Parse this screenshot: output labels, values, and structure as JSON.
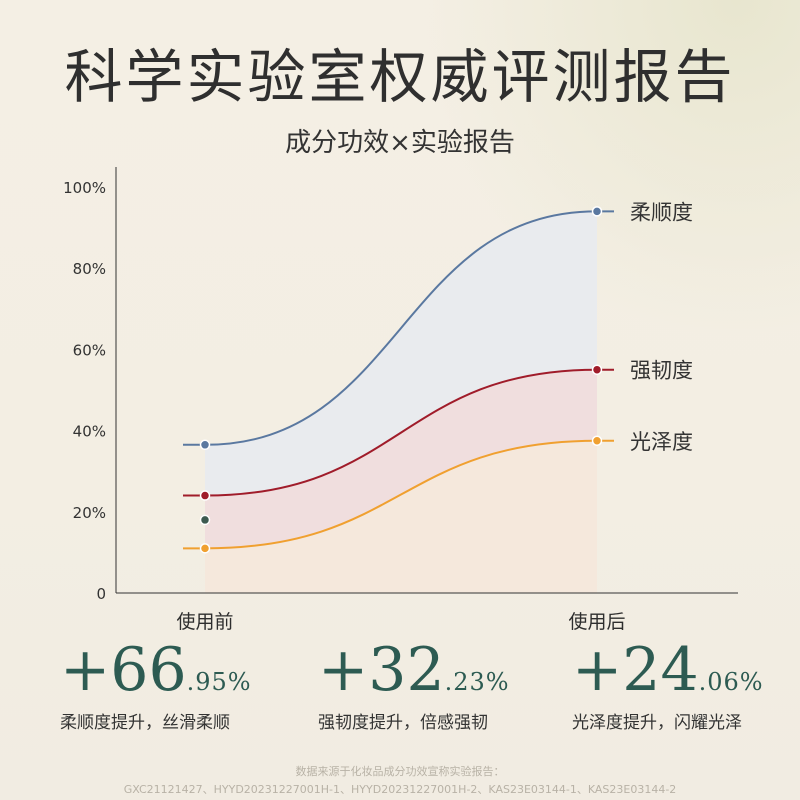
{
  "header": {
    "title": "科学实验室权威评测报告",
    "subtitle": "成分功效×实验报告"
  },
  "chart_data": {
    "type": "area",
    "categories": [
      "使用前",
      "使用后"
    ],
    "ylim": [
      0,
      100
    ],
    "yticks": [
      "0",
      "20%",
      "40%",
      "60%",
      "80%",
      "100%"
    ],
    "grid": false,
    "series": [
      {
        "name": "柔顺度",
        "values": [
          36.5,
          94
        ],
        "color": "#5a78a0",
        "fill": "#e9ebee"
      },
      {
        "name": "强韧度",
        "values": [
          24,
          55
        ],
        "color": "#a01c2a",
        "fill": "#f0dede"
      },
      {
        "name": "光泽度",
        "values": [
          11,
          37.5
        ],
        "color": "#f0a030",
        "fill": "#f5e8dc"
      }
    ],
    "extra_marker": {
      "category": "使用前",
      "value": 18,
      "color": "#3c5a50"
    }
  },
  "stats": [
    {
      "sign_value": "+66",
      "decimal": ".95%",
      "desc": "柔顺度提升，丝滑柔顺"
    },
    {
      "sign_value": "+32",
      "decimal": ".23%",
      "desc": "强韧度提升，倍感强韧"
    },
    {
      "sign_value": "+24",
      "decimal": ".06%",
      "desc": "光泽度提升，闪耀光泽"
    }
  ],
  "footer": {
    "line1": "数据来源于化妆品成分功效宣称实验报告：",
    "line2": "GXC21121427、HYYD20231227001H-1、HYYD20231227001H-2、KAS23E03144-1、KAS23E03144-2"
  }
}
